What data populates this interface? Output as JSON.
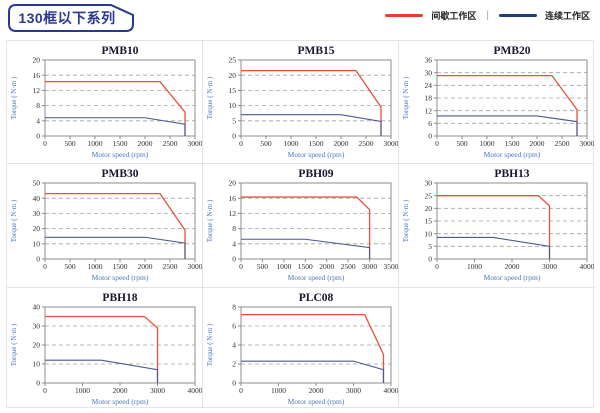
{
  "page": {
    "header_title": "130框以下系列",
    "legend": {
      "items": [
        {
          "name": "intermittent-zone",
          "label": "间歇工作区",
          "color": "#e8402a"
        },
        {
          "name": "continuous-zone",
          "label": "连续工作区",
          "color": "#1e3d7b"
        }
      ],
      "separator": "|"
    }
  },
  "colors": {
    "header_border": "#2b3890",
    "red_line": "#e8503a",
    "blue_line": "#4a5890",
    "grid_line": "#a2a2a2",
    "plot_border": "#8c8c8c",
    "axis_label": "#4a78bf",
    "tick_label": "#2f2f2f",
    "title": "#17172e",
    "table_border": "#e4e4e4"
  },
  "chart_data": [
    {
      "type": "line",
      "title": "PMB10",
      "xlabel": "Motor speed (rpm)",
      "ylabel": "Torque ( N·m )",
      "xlim": [
        0,
        3000
      ],
      "xticks": [
        0,
        500,
        1000,
        1500,
        2000,
        2500,
        3000
      ],
      "ylim": [
        0,
        20
      ],
      "yticks": [
        0,
        4,
        8,
        12,
        16,
        20
      ],
      "grid": "dashed-horizontal",
      "legend_position": "none",
      "series": [
        {
          "name": "间歇工作区",
          "color": "#e8503a",
          "points": [
            [
              0,
              14.3
            ],
            [
              2300,
              14.3
            ],
            [
              2800,
              6.3
            ],
            [
              2800,
              0
            ]
          ]
        },
        {
          "name": "连续工作区",
          "color": "#4a5890",
          "points": [
            [
              0,
              4.8
            ],
            [
              2000,
              4.8
            ],
            [
              2800,
              3.1
            ],
            [
              2800,
              0
            ]
          ]
        }
      ]
    },
    {
      "type": "line",
      "title": "PMB15",
      "xlabel": "Motor speed (rpm)",
      "ylabel": "Torque ( N·m )",
      "xlim": [
        0,
        3000
      ],
      "xticks": [
        0,
        500,
        1000,
        1500,
        2000,
        2500,
        3000
      ],
      "ylim": [
        0,
        25
      ],
      "yticks": [
        0,
        5,
        10,
        15,
        20,
        25
      ],
      "grid": "dashed-horizontal",
      "legend_position": "none",
      "series": [
        {
          "name": "间歇工作区",
          "color": "#e8503a",
          "points": [
            [
              0,
              21.5
            ],
            [
              2300,
              21.5
            ],
            [
              2800,
              9.5
            ],
            [
              2800,
              0
            ]
          ]
        },
        {
          "name": "连续工作区",
          "color": "#4a5890",
          "points": [
            [
              0,
              7
            ],
            [
              2000,
              7
            ],
            [
              2800,
              4.8
            ],
            [
              2800,
              0
            ]
          ]
        }
      ]
    },
    {
      "type": "line",
      "title": "PMB20",
      "xlabel": "Motor speed (rpm)",
      "ylabel": "Torque ( N·m )",
      "xlim": [
        0,
        3000
      ],
      "xticks": [
        0,
        500,
        1000,
        1500,
        2000,
        2500,
        3000
      ],
      "ylim": [
        0,
        36
      ],
      "yticks": [
        0,
        6,
        12,
        18,
        24,
        30,
        36
      ],
      "grid": "dashed-horizontal",
      "legend_position": "none",
      "series": [
        {
          "name": "间歇工作区",
          "color": "#e8503a",
          "points": [
            [
              0,
              28.6
            ],
            [
              2300,
              28.6
            ],
            [
              2800,
              12.5
            ],
            [
              2800,
              0
            ]
          ]
        },
        {
          "name": "连续工作区",
          "color": "#4a5890",
          "points": [
            [
              0,
              9.5
            ],
            [
              2000,
              9.5
            ],
            [
              2800,
              6.8
            ],
            [
              2800,
              0
            ]
          ]
        }
      ]
    },
    {
      "type": "line",
      "title": "PMB30",
      "xlabel": "Motor speed (rpm)",
      "ylabel": "Torque ( N·m )",
      "xlim": [
        0,
        3000
      ],
      "xticks": [
        0,
        500,
        1000,
        1500,
        2000,
        2500,
        3000
      ],
      "ylim": [
        0,
        50
      ],
      "yticks": [
        0,
        10,
        20,
        30,
        40,
        50
      ],
      "grid": "dashed-horizontal",
      "legend_position": "none",
      "series": [
        {
          "name": "间歇工作区",
          "color": "#e8503a",
          "points": [
            [
              0,
              43
            ],
            [
              2300,
              43
            ],
            [
              2800,
              19
            ],
            [
              2800,
              0
            ]
          ]
        },
        {
          "name": "连续工作区",
          "color": "#4a5890",
          "points": [
            [
              0,
              14.3
            ],
            [
              2000,
              14.3
            ],
            [
              2800,
              10.5
            ],
            [
              2800,
              0
            ]
          ]
        }
      ]
    },
    {
      "type": "line",
      "title": "PBH09",
      "xlabel": "Motor speed (rpm)",
      "ylabel": "Torque ( N·m )",
      "xlim": [
        0,
        3500
      ],
      "xticks": [
        0,
        500,
        1000,
        1500,
        2000,
        2500,
        3000,
        3500
      ],
      "ylim": [
        0,
        20
      ],
      "yticks": [
        0,
        4,
        8,
        12,
        16,
        20
      ],
      "grid": "dashed-horizontal",
      "legend_position": "none",
      "series": [
        {
          "name": "间歇工作区",
          "color": "#e8503a",
          "points": [
            [
              0,
              16.3
            ],
            [
              2700,
              16.3
            ],
            [
              3000,
              13
            ],
            [
              3000,
              0
            ]
          ]
        },
        {
          "name": "连续工作区",
          "color": "#4a5890",
          "points": [
            [
              0,
              5.2
            ],
            [
              1500,
              5.2
            ],
            [
              3000,
              3
            ],
            [
              3000,
              0
            ]
          ]
        }
      ]
    },
    {
      "type": "line",
      "title": "PBH13",
      "xlabel": "Motor speed (rpm)",
      "ylabel": "Torque ( N·m )",
      "xlim": [
        0,
        4000
      ],
      "xticks": [
        0,
        1000,
        2000,
        3000,
        4000
      ],
      "ylim": [
        0,
        30
      ],
      "yticks": [
        0,
        5,
        10,
        15,
        20,
        25,
        30
      ],
      "grid": "dashed-horizontal",
      "legend_position": "none",
      "series": [
        {
          "name": "间歇工作区",
          "color": "#e8503a",
          "points": [
            [
              0,
              25
            ],
            [
              2700,
              25
            ],
            [
              3000,
              21
            ],
            [
              3000,
              0
            ]
          ]
        },
        {
          "name": "连续工作区",
          "color": "#4a5890",
          "points": [
            [
              0,
              8.5
            ],
            [
              1500,
              8.5
            ],
            [
              3000,
              5
            ],
            [
              3000,
              0
            ]
          ]
        }
      ]
    },
    {
      "type": "line",
      "title": "PBH18",
      "xlabel": "Motor speed (rpm)",
      "ylabel": "Torque ( N·m )",
      "xlim": [
        0,
        4000
      ],
      "xticks": [
        0,
        1000,
        2000,
        3000,
        4000
      ],
      "ylim": [
        0,
        40
      ],
      "yticks": [
        0,
        10,
        20,
        30,
        40
      ],
      "grid": "dashed-horizontal",
      "legend_position": "none",
      "series": [
        {
          "name": "间歇工作区",
          "color": "#e8503a",
          "points": [
            [
              0,
              35
            ],
            [
              2650,
              35
            ],
            [
              3000,
              29
            ],
            [
              3000,
              0
            ]
          ]
        },
        {
          "name": "连续工作区",
          "color": "#4a5890",
          "points": [
            [
              0,
              12
            ],
            [
              1500,
              12
            ],
            [
              3000,
              7
            ],
            [
              3000,
              0
            ]
          ]
        }
      ]
    },
    {
      "type": "line",
      "title": "PLC08",
      "xlabel": "Motor speed (rpm)",
      "ylabel": "Torque ( N·m )",
      "xlim": [
        0,
        4000
      ],
      "xticks": [
        0,
        1000,
        2000,
        3000,
        4000
      ],
      "ylim": [
        0,
        8
      ],
      "yticks": [
        0,
        2,
        4,
        6,
        8
      ],
      "grid": "dashed-horizontal",
      "legend_position": "none",
      "series": [
        {
          "name": "间歇工作区",
          "color": "#e8503a",
          "points": [
            [
              0,
              7.2
            ],
            [
              3300,
              7.2
            ],
            [
              3800,
              3
            ],
            [
              3800,
              0
            ]
          ]
        },
        {
          "name": "连续工作区",
          "color": "#4a5890",
          "points": [
            [
              0,
              2.3
            ],
            [
              3000,
              2.3
            ],
            [
              3800,
              1.4
            ],
            [
              3800,
              0
            ]
          ]
        }
      ]
    }
  ]
}
